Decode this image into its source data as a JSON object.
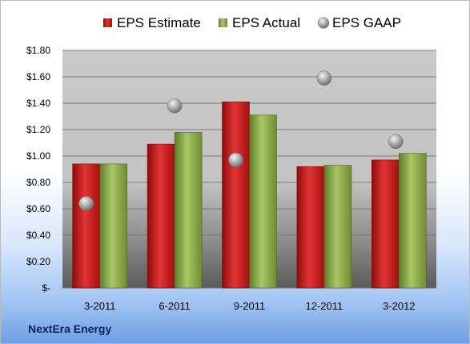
{
  "company": "NextEra Energy",
  "colors": {
    "estimate": "#c01818",
    "actual": "#8aab45",
    "gaap": "#a7a7a7"
  },
  "chart_data": {
    "type": "bar",
    "categories": [
      "3-2011",
      "6-2011",
      "9-2011",
      "12-2011",
      "3-2012"
    ],
    "series": [
      {
        "name": "EPS Estimate",
        "kind": "bar",
        "values": [
          0.94,
          1.09,
          1.41,
          0.92,
          0.97
        ]
      },
      {
        "name": "EPS Actual",
        "kind": "bar",
        "values": [
          0.94,
          1.18,
          1.31,
          0.93,
          1.02
        ]
      },
      {
        "name": "EPS GAAP",
        "kind": "scatter",
        "values": [
          0.64,
          1.38,
          0.97,
          1.59,
          1.11
        ]
      }
    ],
    "ylim": [
      0,
      1.8
    ],
    "yticks": [
      0,
      0.2,
      0.4,
      0.6,
      0.8,
      1.0,
      1.2,
      1.4,
      1.6,
      1.8
    ],
    "ytick_labels": [
      "$-",
      "$0.20",
      "$0.40",
      "$0.60",
      "$0.80",
      "$1.00",
      "$1.20",
      "$1.40",
      "$1.60",
      "$1.80"
    ],
    "legend": "top",
    "grid": true
  }
}
